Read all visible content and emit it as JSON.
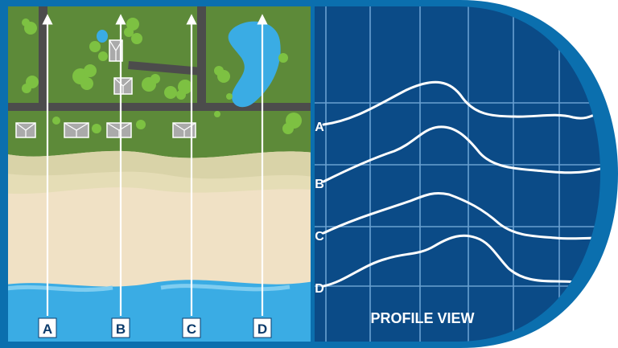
{
  "colors": {
    "frame": "#0b6fae",
    "ocean": "#3aace4",
    "sand": "#f0e1c5",
    "dune": "#d9d3a8",
    "vegetation": "#5d8a39",
    "road": "#4c4c4c",
    "pond": "#3aace4",
    "tree": "#7dc142",
    "roof": "#aaaaaa",
    "blueprint": "#0b4b87",
    "grid": "#7bb0de",
    "profile_line": "#ffffff",
    "label_box": "#ffffff",
    "label_text": "#0b3b6b"
  },
  "transects": [
    {
      "label": "A"
    },
    {
      "label": "B"
    },
    {
      "label": "C"
    },
    {
      "label": "D"
    }
  ],
  "profiles": [
    {
      "label": "A"
    },
    {
      "label": "B"
    },
    {
      "label": "C"
    },
    {
      "label": "D"
    }
  ],
  "profile_panel": {
    "title": "PROFILE VIEW"
  }
}
